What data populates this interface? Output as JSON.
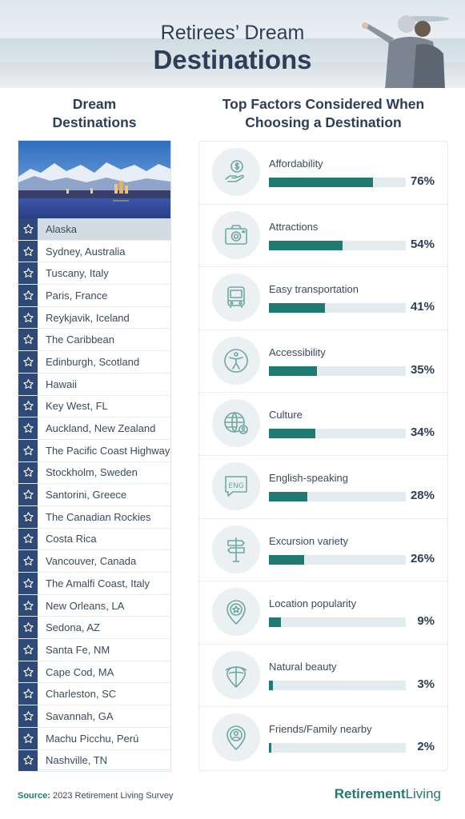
{
  "header": {
    "title_line1": "Retirees’ Dream",
    "title_line2": "Destinations"
  },
  "destinations": {
    "heading_line1": "Dream",
    "heading_line2": "Destinations",
    "items": [
      "Alaska",
      "Sydney, Australia",
      "Tuscany, Italy",
      "Paris, France",
      "Reykjavik, Iceland",
      "The Caribbean",
      "Edinburgh, Scotland",
      "Hawaii",
      "Key West, FL",
      "Auckland, New Zealand",
      "The Pacific Coast Highway",
      "Stockholm, Sweden",
      "Santorini, Greece",
      "The Canadian Rockies",
      "Costa Rica",
      "Vancouver, Canada",
      "The Amalfi Coast, Italy",
      "New Orleans, LA",
      "Sedona, AZ",
      "Santa Fe, NM",
      "Cape Cod, MA",
      "Charleston, SC",
      "Savannah, GA",
      "Machu Picchu, Perú",
      "Nashville, TN"
    ],
    "highlighted": "Alaska"
  },
  "chart_data": {
    "type": "bar",
    "title": "Top Factors Considered When Choosing a Destination",
    "title_line1": "Top Factors Considered When",
    "title_line2": "Choosing a Destination",
    "orientation": "horizontal",
    "categories": [
      "Affordability",
      "Attractions",
      "Easy transportation",
      "Accessibility",
      "Culture",
      "English-speaking",
      "Excursion variety",
      "Location popularity",
      "Natural beauty",
      "Friends/Family nearby"
    ],
    "values": [
      76,
      54,
      41,
      35,
      34,
      28,
      26,
      9,
      3,
      2
    ],
    "value_labels": [
      "76%",
      "54%",
      "41%",
      "35%",
      "34%",
      "28%",
      "26%",
      "9%",
      "3%",
      "2%"
    ],
    "icons": [
      "money-hand-icon",
      "camera-icon",
      "bus-icon",
      "accessibility-icon",
      "globe-user-icon",
      "eng-speech-icon",
      "signpost-icon",
      "location-star-icon",
      "leaf-pin-icon",
      "user-pin-icon"
    ],
    "xlim": [
      0,
      100
    ],
    "unit": "%",
    "bar_color": "#1f7a72",
    "track_color": "#e2ecee"
  },
  "footer": {
    "source_key": "Source:",
    "source_text": " 2023 Retirement Living Survey",
    "brand_bold": "Retirement",
    "brand_light": "Living"
  },
  "colors": {
    "navy": "#2d3e57",
    "star_cell": "#2e4a78",
    "teal": "#1f7a72"
  }
}
